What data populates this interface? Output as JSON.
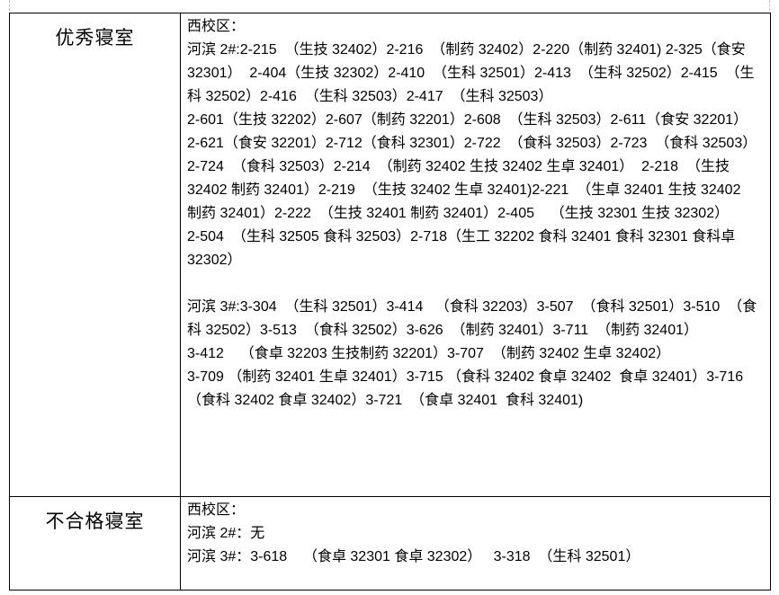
{
  "page": {
    "background": "#ffffff",
    "text_color": "#000000",
    "border_color": "#000000",
    "boundary_mark_color": "#bfbfbf"
  },
  "table": {
    "rows": [
      {
        "label": "优秀寝室",
        "lines": [
          "西校区：",
          "河滨 2#:2-215  （生技 32402）2-216  （制药 32402）2-220（制药 32401) 2-325（食安",
          "32301）  2-404（生技 32302）2-410  （生科 32501）2-413  （生科 32502）2-415  （生",
          "科 32502）2-416  （生科 32503）2-417  （生科 32503）",
          "2-601（生技 32202）2-607（制药 32201）2-608  （生科 32503）2-611（食安 32201）",
          "2-621（食安 32201）2-712（食科 32301）2-722  （食科 32503）2-723  （食科 32503）",
          "2-724  （食科 32503）2-214  （制药 32402 生技 32402 生卓 32401）  2-218  （生技",
          "32402 制药 32401）2-219  （生技 32402 生卓 32401)2-221  （生卓 32401 生技 32402",
          "制药 32401）2-222  （生技 32401 制药 32401）2-405    （生技 32301 生技 32302）",
          "2-504  （生科 32505 食科 32503）2-718（生工 32202 食科 32401 食科 32301 食科卓",
          "32302）",
          "",
          "河滨 3#:3-304  （生科 32501）3-414   （食科 32203）3-507  （食科 32501）3-510  （食",
          "科 32502）3-513  （食科 32502）3-626  （制药 32401）3-711  （制药 32401）",
          "3-412    （食卓 32203 生技制药 32201）3-707  （制药 32402 生卓 32402）",
          "3-709 （制药 32401 生卓 32401）3-715 （食科 32402 食卓 32402  食卓 32401）3-716",
          "（食科 32402 食卓 32402）3-721  （食卓 32401  食科 32401)"
        ]
      },
      {
        "label": "不合格寝室",
        "lines": [
          "西校区：",
          "河滨 2#：无",
          "河滨 3#：3-618    （食卓 32301 食卓 32302）   3-318  （生科 32501）"
        ]
      }
    ]
  }
}
